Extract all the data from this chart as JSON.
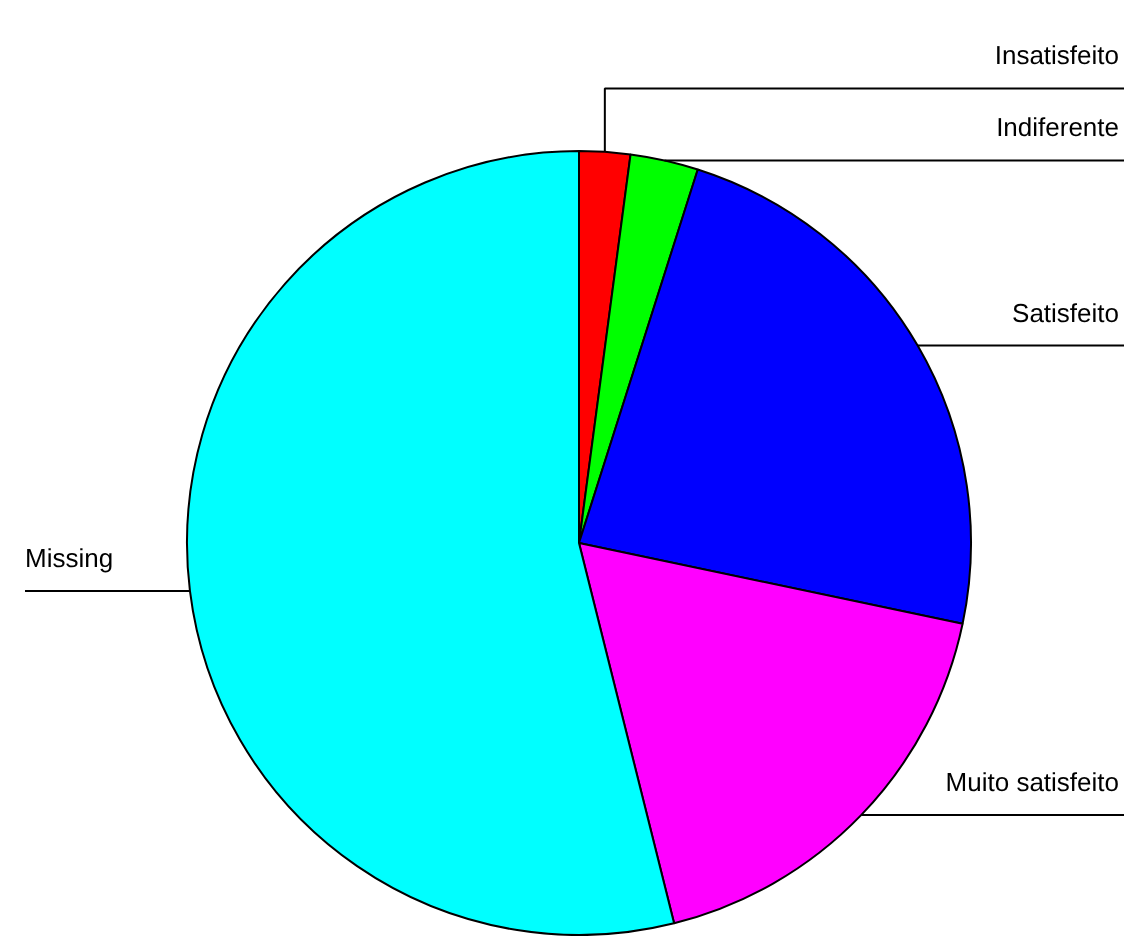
{
  "chart_data": {
    "type": "pie",
    "categories": [
      "Insatisfeito",
      "Indiferente",
      "Satisfeito",
      "Muito satisfeito",
      "Missing"
    ],
    "values": [
      2.1,
      2.8,
      23.4,
      17.8,
      53.9
    ],
    "colors": [
      "#ff0000",
      "#00ff00",
      "#0000ff",
      "#ff00ff",
      "#00ffff"
    ]
  }
}
